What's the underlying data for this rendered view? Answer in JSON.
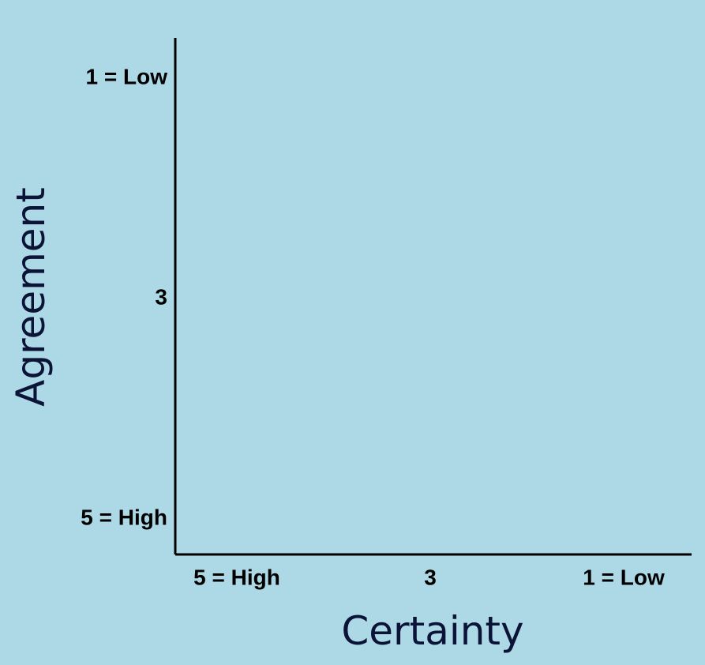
{
  "chart_data": {
    "type": "scatter",
    "title": "",
    "xlabel": "Certainty",
    "ylabel": "Agreement",
    "x_ticks": [
      {
        "value": 5,
        "label": "5 = High"
      },
      {
        "value": 3,
        "label": "3"
      },
      {
        "value": 1,
        "label": "1 = Low"
      }
    ],
    "y_ticks": [
      {
        "value": 1,
        "label": "1 = Low"
      },
      {
        "value": 3,
        "label": "3"
      },
      {
        "value": 5,
        "label": "5 = High"
      }
    ],
    "xlim": [
      5,
      1
    ],
    "ylim": [
      5,
      1
    ],
    "x_reversed": true,
    "y_reversed": true,
    "grid": false,
    "series": []
  },
  "colors": {
    "background": "#add8e6",
    "axis_line": "#000000",
    "tick_text": "#000000",
    "axis_title": "#0b1437"
  }
}
